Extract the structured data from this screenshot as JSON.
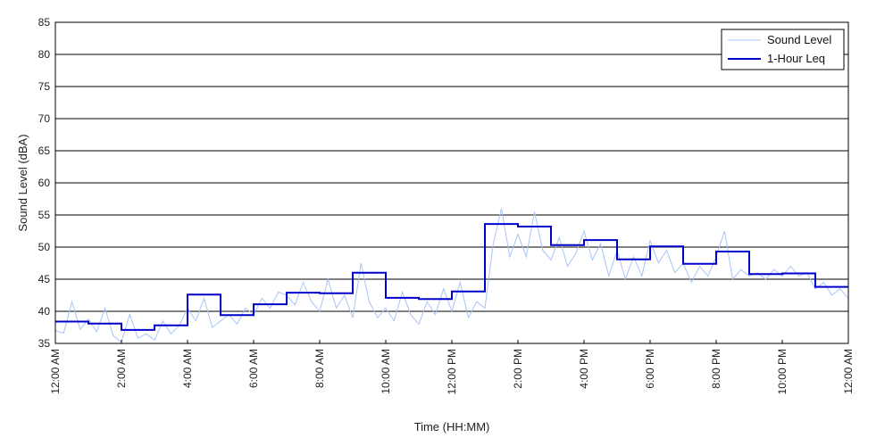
{
  "chart_data": {
    "type": "line",
    "title": "",
    "xlabel": "Time (HH:MM)",
    "ylabel": "Sound Level (dBA)",
    "xlim": [
      0,
      24
    ],
    "ylim": [
      35,
      85
    ],
    "y_ticks": [
      35,
      40,
      45,
      50,
      55,
      60,
      65,
      70,
      75,
      80,
      85
    ],
    "x_ticks": [
      {
        "hour": 0,
        "label": "12:00 AM"
      },
      {
        "hour": 2,
        "label": "2:00 AM"
      },
      {
        "hour": 4,
        "label": "4:00 AM"
      },
      {
        "hour": 6,
        "label": "6:00 AM"
      },
      {
        "hour": 8,
        "label": "8:00 AM"
      },
      {
        "hour": 10,
        "label": "10:00 AM"
      },
      {
        "hour": 12,
        "label": "12:00 PM"
      },
      {
        "hour": 14,
        "label": "2:00 PM"
      },
      {
        "hour": 16,
        "label": "4:00 PM"
      },
      {
        "hour": 18,
        "label": "6:00 PM"
      },
      {
        "hour": 20,
        "label": "8:00 PM"
      },
      {
        "hour": 22,
        "label": "10:00 PM"
      },
      {
        "hour": 24,
        "label": "12:00 AM"
      }
    ],
    "grid": "horizontal",
    "legend_position": "top-right",
    "series": [
      {
        "name": "Sound Level",
        "color": "#a9c4f5",
        "style": "thin-line",
        "points": [
          [
            0.0,
            37.0
          ],
          [
            0.25,
            36.6
          ],
          [
            0.5,
            41.5
          ],
          [
            0.75,
            37.2
          ],
          [
            1.0,
            38.8
          ],
          [
            1.25,
            36.8
          ],
          [
            1.5,
            40.5
          ],
          [
            1.75,
            36.2
          ],
          [
            2.0,
            35.2
          ],
          [
            2.25,
            39.5
          ],
          [
            2.5,
            35.8
          ],
          [
            2.75,
            36.5
          ],
          [
            3.0,
            35.5
          ],
          [
            3.25,
            38.5
          ],
          [
            3.5,
            36.5
          ],
          [
            3.75,
            37.8
          ],
          [
            4.0,
            40.5
          ],
          [
            4.25,
            38.5
          ],
          [
            4.5,
            42.0
          ],
          [
            4.75,
            37.5
          ],
          [
            5.0,
            38.5
          ],
          [
            5.25,
            39.5
          ],
          [
            5.5,
            38.0
          ],
          [
            5.75,
            40.5
          ],
          [
            6.0,
            39.5
          ],
          [
            6.25,
            42.0
          ],
          [
            6.5,
            40.5
          ],
          [
            6.75,
            43.0
          ],
          [
            7.0,
            42.5
          ],
          [
            7.25,
            41.0
          ],
          [
            7.5,
            44.5
          ],
          [
            7.75,
            41.5
          ],
          [
            8.0,
            40.0
          ],
          [
            8.25,
            45.0
          ],
          [
            8.5,
            40.5
          ],
          [
            8.75,
            42.5
          ],
          [
            9.0,
            39.0
          ],
          [
            9.25,
            47.5
          ],
          [
            9.5,
            41.5
          ],
          [
            9.75,
            39.0
          ],
          [
            10.0,
            40.5
          ],
          [
            10.25,
            38.5
          ],
          [
            10.5,
            43.0
          ],
          [
            10.75,
            39.5
          ],
          [
            11.0,
            38.0
          ],
          [
            11.25,
            41.5
          ],
          [
            11.5,
            39.5
          ],
          [
            11.75,
            43.5
          ],
          [
            12.0,
            40.0
          ],
          [
            12.25,
            44.5
          ],
          [
            12.5,
            39.0
          ],
          [
            12.75,
            41.5
          ],
          [
            13.0,
            40.5
          ],
          [
            13.25,
            50.5
          ],
          [
            13.5,
            56.0
          ],
          [
            13.75,
            48.5
          ],
          [
            14.0,
            52.0
          ],
          [
            14.25,
            48.5
          ],
          [
            14.5,
            55.5
          ],
          [
            14.75,
            49.5
          ],
          [
            15.0,
            48.0
          ],
          [
            15.25,
            51.5
          ],
          [
            15.5,
            47.0
          ],
          [
            15.75,
            49.0
          ],
          [
            16.0,
            52.5
          ],
          [
            16.25,
            48.0
          ],
          [
            16.5,
            50.5
          ],
          [
            16.75,
            45.5
          ],
          [
            17.0,
            49.5
          ],
          [
            17.25,
            45.0
          ],
          [
            17.5,
            48.5
          ],
          [
            17.75,
            45.5
          ],
          [
            18.0,
            51.0
          ],
          [
            18.25,
            47.5
          ],
          [
            18.5,
            49.5
          ],
          [
            18.75,
            46.0
          ],
          [
            19.0,
            47.5
          ],
          [
            19.25,
            44.5
          ],
          [
            19.5,
            47.0
          ],
          [
            19.75,
            45.5
          ],
          [
            20.0,
            48.5
          ],
          [
            20.25,
            52.5
          ],
          [
            20.5,
            45.0
          ],
          [
            20.75,
            46.5
          ],
          [
            21.0,
            45.5
          ],
          [
            21.25,
            46.0
          ],
          [
            21.5,
            45.0
          ],
          [
            21.75,
            46.5
          ],
          [
            22.0,
            45.5
          ],
          [
            22.25,
            47.0
          ],
          [
            22.5,
            45.5
          ],
          [
            22.75,
            46.0
          ],
          [
            23.0,
            43.5
          ],
          [
            23.25,
            44.5
          ],
          [
            23.5,
            42.5
          ],
          [
            23.75,
            43.5
          ],
          [
            24.0,
            42.0
          ]
        ]
      },
      {
        "name": "1-Hour Leq",
        "color": "#0000cc",
        "style": "step",
        "hourly_values": [
          38.4,
          38.1,
          37.1,
          37.8,
          42.6,
          39.4,
          41.1,
          42.9,
          42.8,
          46.0,
          42.1,
          41.9,
          43.1,
          53.6,
          53.2,
          50.3,
          51.1,
          48.1,
          50.1,
          47.4,
          49.3,
          45.8,
          45.9,
          43.8
        ]
      }
    ]
  }
}
